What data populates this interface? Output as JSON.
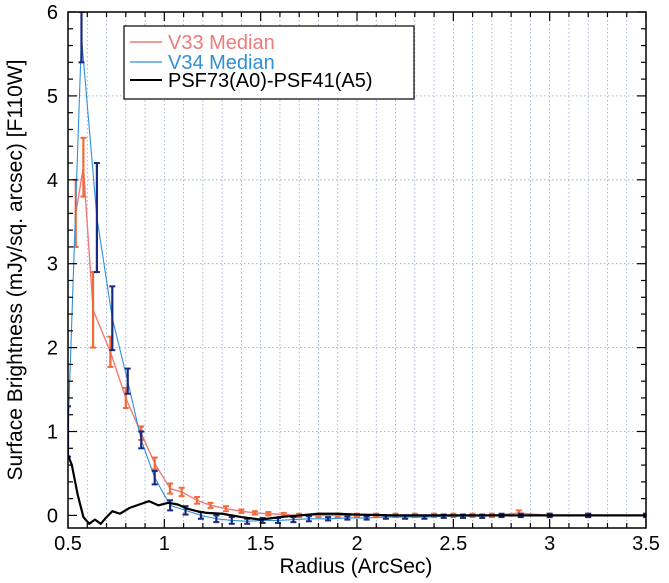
{
  "chart_data": {
    "type": "line",
    "title": "",
    "xlabel": "Radius (ArcSec)",
    "ylabel": "Surface Brightness (mJy/sq. arcsec) [F110W]",
    "xlim": [
      0.5,
      3.5
    ],
    "ylim": [
      -0.15,
      6
    ],
    "xticks": [
      0.5,
      1,
      1.5,
      2,
      2.5,
      3,
      3.5
    ],
    "xtick_labels": [
      "0.5",
      "1",
      "1.5",
      "2",
      "2.5",
      "3",
      "3.5"
    ],
    "yticks": [
      0,
      1,
      2,
      3,
      4,
      5,
      6
    ],
    "ytick_labels": [
      "0",
      "1",
      "2",
      "3",
      "4",
      "5",
      "6"
    ],
    "grid": true,
    "legend": "top-left",
    "series": [
      {
        "name": "V33 Median",
        "color": "#f07a7a",
        "errcolor": "#f26a3a",
        "x": [
          0.54,
          0.58,
          0.63,
          0.72,
          0.8,
          0.88,
          0.95,
          1.03,
          1.09,
          1.17,
          1.24,
          1.32,
          1.4,
          1.47,
          1.54,
          1.62,
          1.7,
          1.8,
          1.9,
          2.0,
          2.1,
          2.2,
          2.3,
          2.4,
          2.5,
          2.6,
          2.7,
          2.84,
          3.0,
          3.2,
          3.5
        ],
        "y": [
          3.6,
          4.15,
          2.45,
          1.95,
          1.4,
          0.98,
          0.62,
          0.32,
          0.28,
          0.18,
          0.12,
          0.08,
          0.05,
          0.03,
          0.02,
          0.01,
          0.0,
          0.0,
          0.0,
          0.0,
          0.0,
          0.0,
          0.0,
          0.0,
          0.0,
          0.0,
          0.0,
          0.03,
          0.0,
          0.0,
          0.0
        ],
        "err": [
          0.4,
          0.35,
          0.45,
          0.18,
          0.12,
          0.08,
          0.07,
          0.06,
          0.05,
          0.04,
          0.03,
          0.03,
          0.02,
          0.02,
          0.02,
          0.02,
          0.02,
          0.02,
          0.02,
          0.02,
          0.02,
          0.02,
          0.02,
          0.02,
          0.02,
          0.02,
          0.02,
          0.03,
          0.02,
          0.02,
          0.02
        ]
      },
      {
        "name": "V34 Median",
        "color": "#2f8fd8",
        "errcolor": "#1a2a80",
        "x": [
          0.5,
          0.57,
          0.65,
          0.73,
          0.81,
          0.88,
          0.95,
          1.03,
          1.11,
          1.19,
          1.27,
          1.35,
          1.43,
          1.51,
          1.59,
          1.67,
          1.75,
          1.85,
          1.95,
          2.05,
          2.15,
          2.25,
          2.35,
          2.45,
          2.55,
          2.65,
          2.75,
          2.85,
          3.0,
          3.2,
          3.5
        ],
        "y": [
          1.0,
          5.7,
          3.55,
          2.35,
          1.6,
          0.9,
          0.45,
          0.12,
          0.06,
          0.0,
          -0.04,
          -0.06,
          -0.07,
          -0.06,
          -0.06,
          -0.05,
          -0.04,
          -0.04,
          -0.03,
          -0.03,
          -0.02,
          -0.02,
          -0.02,
          -0.01,
          -0.01,
          -0.01,
          0.0,
          0.0,
          0.0,
          0.0,
          0.0
        ],
        "err": [
          0.3,
          0.3,
          0.65,
          0.38,
          0.15,
          0.1,
          0.08,
          0.06,
          0.05,
          0.04,
          0.04,
          0.04,
          0.03,
          0.03,
          0.03,
          0.03,
          0.03,
          0.02,
          0.02,
          0.02,
          0.02,
          0.02,
          0.02,
          0.02,
          0.02,
          0.02,
          0.02,
          0.02,
          0.02,
          0.02,
          0.02
        ]
      },
      {
        "name": "PSF73(A0)-PSF41(A5)",
        "color": "#000000",
        "x": [
          0.5,
          0.52,
          0.55,
          0.58,
          0.61,
          0.64,
          0.67,
          0.7,
          0.73,
          0.77,
          0.82,
          0.87,
          0.92,
          0.97,
          1.02,
          1.07,
          1.12,
          1.17,
          1.22,
          1.3,
          1.4,
          1.5,
          1.6,
          1.7,
          1.8,
          1.9,
          2.0,
          2.2,
          2.5,
          2.8,
          3.1,
          3.5
        ],
        "y": [
          0.72,
          0.6,
          0.25,
          -0.02,
          -0.1,
          -0.05,
          -0.1,
          -0.02,
          0.05,
          0.02,
          0.09,
          0.13,
          0.17,
          0.12,
          0.15,
          0.13,
          0.08,
          0.05,
          0.03,
          0.02,
          -0.02,
          -0.05,
          -0.02,
          0.0,
          0.02,
          0.02,
          0.01,
          0.0,
          0.0,
          0.0,
          0.0,
          0.0
        ]
      }
    ]
  }
}
